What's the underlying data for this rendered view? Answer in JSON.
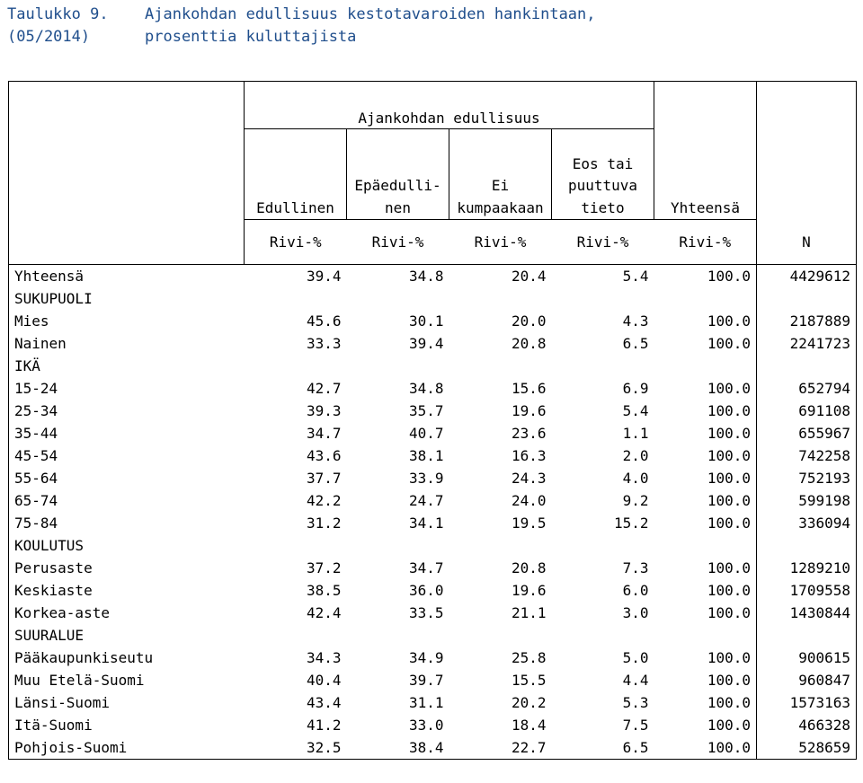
{
  "caption": {
    "number": "Taulukko 9.",
    "title": "Ajankohdan edullisuus kestotavaroiden hankintaan,",
    "date": "(05/2014)",
    "subtitle": "prosenttia kuluttajista"
  },
  "header": {
    "group": "Ajankohdan edullisuus",
    "columns": [
      [
        "Edullinen"
      ],
      [
        "Epäedulli-",
        "nen"
      ],
      [
        "Ei",
        "kumpaakaan"
      ],
      [
        "Eos tai",
        "puuttuva",
        "tieto"
      ],
      [
        "Yhteensä"
      ]
    ],
    "units": [
      "Rivi-%",
      "Rivi-%",
      "Rivi-%",
      "Rivi-%",
      "Rivi-%"
    ],
    "n_label": "N"
  },
  "rows": [
    {
      "label": "Yhteensä",
      "values": [
        "39.4",
        "34.8",
        "20.4",
        "5.4",
        "100.0",
        "4429612"
      ]
    },
    {
      "label": "SUKUPUOLI",
      "values": []
    },
    {
      "label": "Mies",
      "values": [
        "45.6",
        "30.1",
        "20.0",
        "4.3",
        "100.0",
        "2187889"
      ]
    },
    {
      "label": "Nainen",
      "values": [
        "33.3",
        "39.4",
        "20.8",
        "6.5",
        "100.0",
        "2241723"
      ]
    },
    {
      "label": "IKÄ",
      "values": []
    },
    {
      "label": "15-24",
      "values": [
        "42.7",
        "34.8",
        "15.6",
        "6.9",
        "100.0",
        "652794"
      ]
    },
    {
      "label": "25-34",
      "values": [
        "39.3",
        "35.7",
        "19.6",
        "5.4",
        "100.0",
        "691108"
      ]
    },
    {
      "label": "35-44",
      "values": [
        "34.7",
        "40.7",
        "23.6",
        "1.1",
        "100.0",
        "655967"
      ]
    },
    {
      "label": "45-54",
      "values": [
        "43.6",
        "38.1",
        "16.3",
        "2.0",
        "100.0",
        "742258"
      ]
    },
    {
      "label": "55-64",
      "values": [
        "37.7",
        "33.9",
        "24.3",
        "4.0",
        "100.0",
        "752193"
      ]
    },
    {
      "label": "65-74",
      "values": [
        "42.2",
        "24.7",
        "24.0",
        "9.2",
        "100.0",
        "599198"
      ]
    },
    {
      "label": "75-84",
      "values": [
        "31.2",
        "34.1",
        "19.5",
        "15.2",
        "100.0",
        "336094"
      ]
    },
    {
      "label": "KOULUTUS",
      "values": []
    },
    {
      "label": "Perusaste",
      "values": [
        "37.2",
        "34.7",
        "20.8",
        "7.3",
        "100.0",
        "1289210"
      ]
    },
    {
      "label": "Keskiaste",
      "values": [
        "38.5",
        "36.0",
        "19.6",
        "6.0",
        "100.0",
        "1709558"
      ]
    },
    {
      "label": "Korkea-aste",
      "values": [
        "42.4",
        "33.5",
        "21.1",
        "3.0",
        "100.0",
        "1430844"
      ]
    },
    {
      "label": "SUURALUE",
      "values": []
    },
    {
      "label": "Pääkaupunkiseutu",
      "values": [
        "34.3",
        "34.9",
        "25.8",
        "5.0",
        "100.0",
        "900615"
      ]
    },
    {
      "label": "Muu Etelä-Suomi",
      "values": [
        "40.4",
        "39.7",
        "15.5",
        "4.4",
        "100.0",
        "960847"
      ]
    },
    {
      "label": "Länsi-Suomi",
      "values": [
        "43.4",
        "31.1",
        "20.2",
        "5.3",
        "100.0",
        "1573163"
      ]
    },
    {
      "label": "Itä-Suomi",
      "values": [
        "41.2",
        "33.0",
        "18.4",
        "7.5",
        "100.0",
        "466328"
      ]
    },
    {
      "label": "Pohjois-Suomi",
      "values": [
        "32.5",
        "38.4",
        "22.7",
        "6.5",
        "100.0",
        "528659"
      ]
    }
  ]
}
